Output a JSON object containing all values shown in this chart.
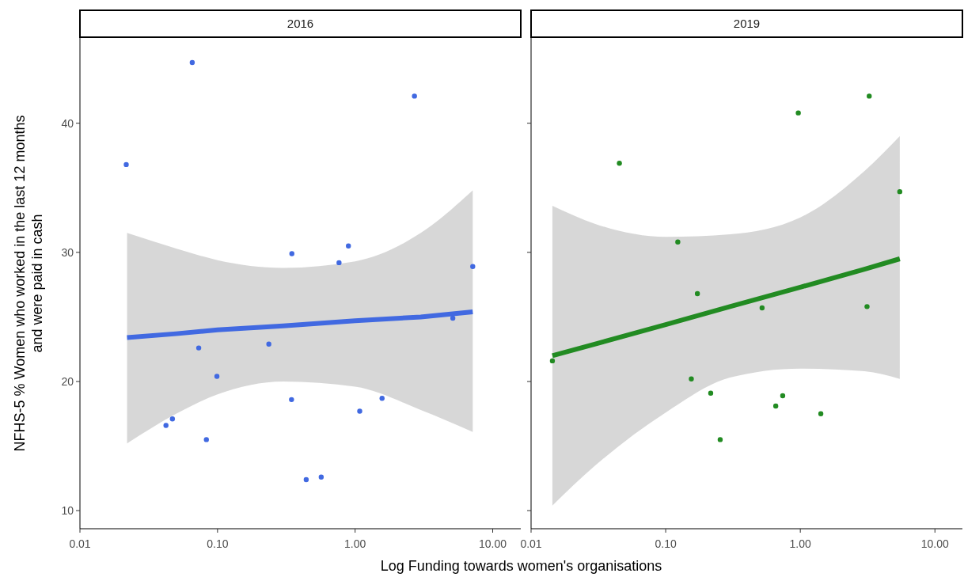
{
  "chart_data": [
    {
      "type": "scatter",
      "title": "2016",
      "xlabel": "Log Funding towards women's organisations",
      "ylabel": "NFHS-5 % Women who worked in the last 12 months\nand were paid in cash",
      "log": "x",
      "xlim": [
        0.01,
        16
      ],
      "ylim": [
        8.6,
        46.6
      ],
      "xticks": [
        0.01,
        {
          "value": 0.1,
          "label": "0.10"
        },
        {
          "value": 1,
          "label": "1.00"
        },
        {
          "value": 10,
          "label": "10.00"
        }
      ],
      "yticks": [
        10,
        20,
        30,
        40
      ],
      "grid": false,
      "marker": "circle",
      "series": [
        {
          "type": "scatter",
          "color": "#4169e1",
          "x": [
            0.0217,
            0.0655,
            2.7,
            0.0422,
            0.047,
            0.083,
            0.073,
            0.099,
            0.236,
            0.347,
            0.345,
            0.441,
            0.567,
            0.764,
            0.894,
            1.08,
            1.57,
            5.13,
            7.16
          ],
          "values": [
            36.8,
            44.7,
            42.1,
            16.6,
            17.1,
            15.5,
            22.6,
            20.4,
            22.9,
            29.9,
            18.6,
            12.4,
            12.6,
            29.2,
            30.5,
            17.7,
            18.7,
            24.9,
            28.9
          ]
        },
        {
          "type": "line",
          "marker": "none",
          "color": "#4169e1",
          "x": [
            0.022,
            0.05,
            0.1,
            0.3,
            1,
            3,
            7.16
          ],
          "values": [
            23.4,
            23.7,
            24.0,
            24.3,
            24.7,
            25.0,
            25.4
          ],
          "lower": [
            15.2,
            17.5,
            19.0,
            20.0,
            19.6,
            17.8,
            16.1
          ],
          "upper": [
            31.5,
            30.3,
            29.4,
            28.8,
            29.3,
            31.5,
            34.8
          ]
        }
      ]
    },
    {
      "type": "scatter",
      "title": "2019",
      "log": "x",
      "xlim": [
        0.01,
        16
      ],
      "ylim": [
        8.6,
        46.6
      ],
      "xticks": [
        0.01,
        {
          "value": 0.1,
          "label": "0.10"
        },
        {
          "value": 1,
          "label": "1.00"
        },
        {
          "value": 10,
          "label": "10.00"
        }
      ],
      "yticks": [
        10,
        20,
        30,
        40
      ],
      "tick_labels": "x",
      "grid": false,
      "marker": "circle",
      "series": [
        {
          "type": "scatter",
          "color": "#228b22",
          "x": [
            0.0144,
            0.0453,
            0.123,
            0.172,
            0.155,
            0.216,
            0.254,
            0.52,
            0.657,
            0.74,
            0.966,
            1.42,
            3.13,
            3.25,
            5.48
          ],
          "values": [
            21.6,
            36.9,
            30.8,
            26.8,
            20.2,
            19.1,
            15.5,
            25.7,
            18.1,
            18.9,
            40.8,
            17.5,
            25.8,
            42.1,
            34.7
          ]
        },
        {
          "type": "line",
          "marker": "none",
          "color": "#228b22",
          "x": [
            0.0144,
            0.03,
            0.1,
            0.3,
            1,
            3,
            5.48
          ],
          "values": [
            22.0,
            22.9,
            24.4,
            25.8,
            27.3,
            28.7,
            29.5
          ],
          "lower": [
            10.4,
            13.5,
            17.6,
            20.3,
            21.0,
            20.8,
            20.2
          ],
          "upper": [
            33.6,
            32.2,
            31.2,
            31.4,
            32.7,
            36.3,
            39.0
          ]
        }
      ]
    }
  ]
}
